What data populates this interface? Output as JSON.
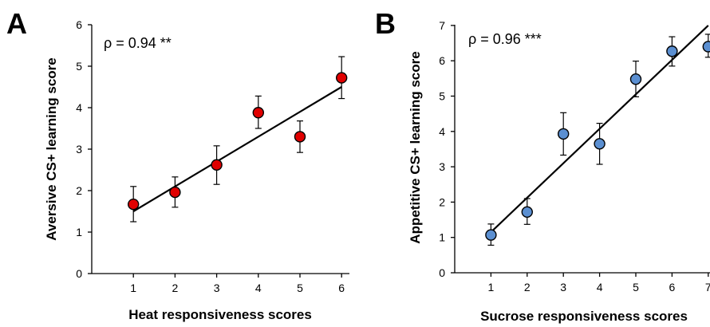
{
  "chart_data": [
    {
      "panel": "A",
      "type": "scatter",
      "annotation": "ρ = 0.94 **",
      "xlabel": "Heat responsiveness scores",
      "ylabel": "Aversive CS+ learning score",
      "xlim": [
        0,
        6
      ],
      "ylim": [
        0,
        6
      ],
      "xticks": [
        1,
        2,
        3,
        4,
        5,
        6
      ],
      "yticks": [
        0,
        1,
        2,
        3,
        4,
        5,
        6
      ],
      "point_color": "#e00000",
      "points": [
        {
          "x": 1,
          "y": 1.67,
          "err_low": 1.25,
          "err_high": 2.1
        },
        {
          "x": 2,
          "y": 1.96,
          "err_low": 1.6,
          "err_high": 2.33
        },
        {
          "x": 3,
          "y": 2.62,
          "err_low": 2.15,
          "err_high": 3.08
        },
        {
          "x": 4,
          "y": 3.88,
          "err_low": 3.5,
          "err_high": 4.28
        },
        {
          "x": 5,
          "y": 3.3,
          "err_low": 2.92,
          "err_high": 3.68
        },
        {
          "x": 6,
          "y": 4.72,
          "err_low": 4.22,
          "err_high": 5.23
        }
      ],
      "fit_line": {
        "x": [
          1,
          6
        ],
        "y": [
          1.5,
          4.5
        ]
      }
    },
    {
      "panel": "B",
      "type": "scatter",
      "annotation": "ρ = 0.96 ***",
      "xlabel": "Sucrose responsiveness scores",
      "ylabel": "Appetitive CS+ learning score",
      "xlim": [
        0,
        7
      ],
      "ylim": [
        0,
        7
      ],
      "xticks": [
        1,
        2,
        3,
        4,
        5,
        6,
        7
      ],
      "yticks": [
        0,
        1,
        2,
        3,
        4,
        5,
        6,
        7
      ],
      "point_color": "#5b8fd1",
      "points": [
        {
          "x": 1,
          "y": 1.07,
          "err_low": 0.78,
          "err_high": 1.38
        },
        {
          "x": 2,
          "y": 1.72,
          "err_low": 1.37,
          "err_high": 2.1
        },
        {
          "x": 3,
          "y": 3.93,
          "err_low": 3.33,
          "err_high": 4.53
        },
        {
          "x": 4,
          "y": 3.65,
          "err_low": 3.07,
          "err_high": 4.23
        },
        {
          "x": 5,
          "y": 5.48,
          "err_low": 4.98,
          "err_high": 5.99
        },
        {
          "x": 6,
          "y": 6.27,
          "err_low": 5.85,
          "err_high": 6.68
        },
        {
          "x": 7,
          "y": 6.4,
          "err_low": 6.1,
          "err_high": 6.75
        }
      ],
      "fit_line": {
        "x": [
          1,
          7
        ],
        "y": [
          1.15,
          7.0
        ]
      }
    }
  ]
}
